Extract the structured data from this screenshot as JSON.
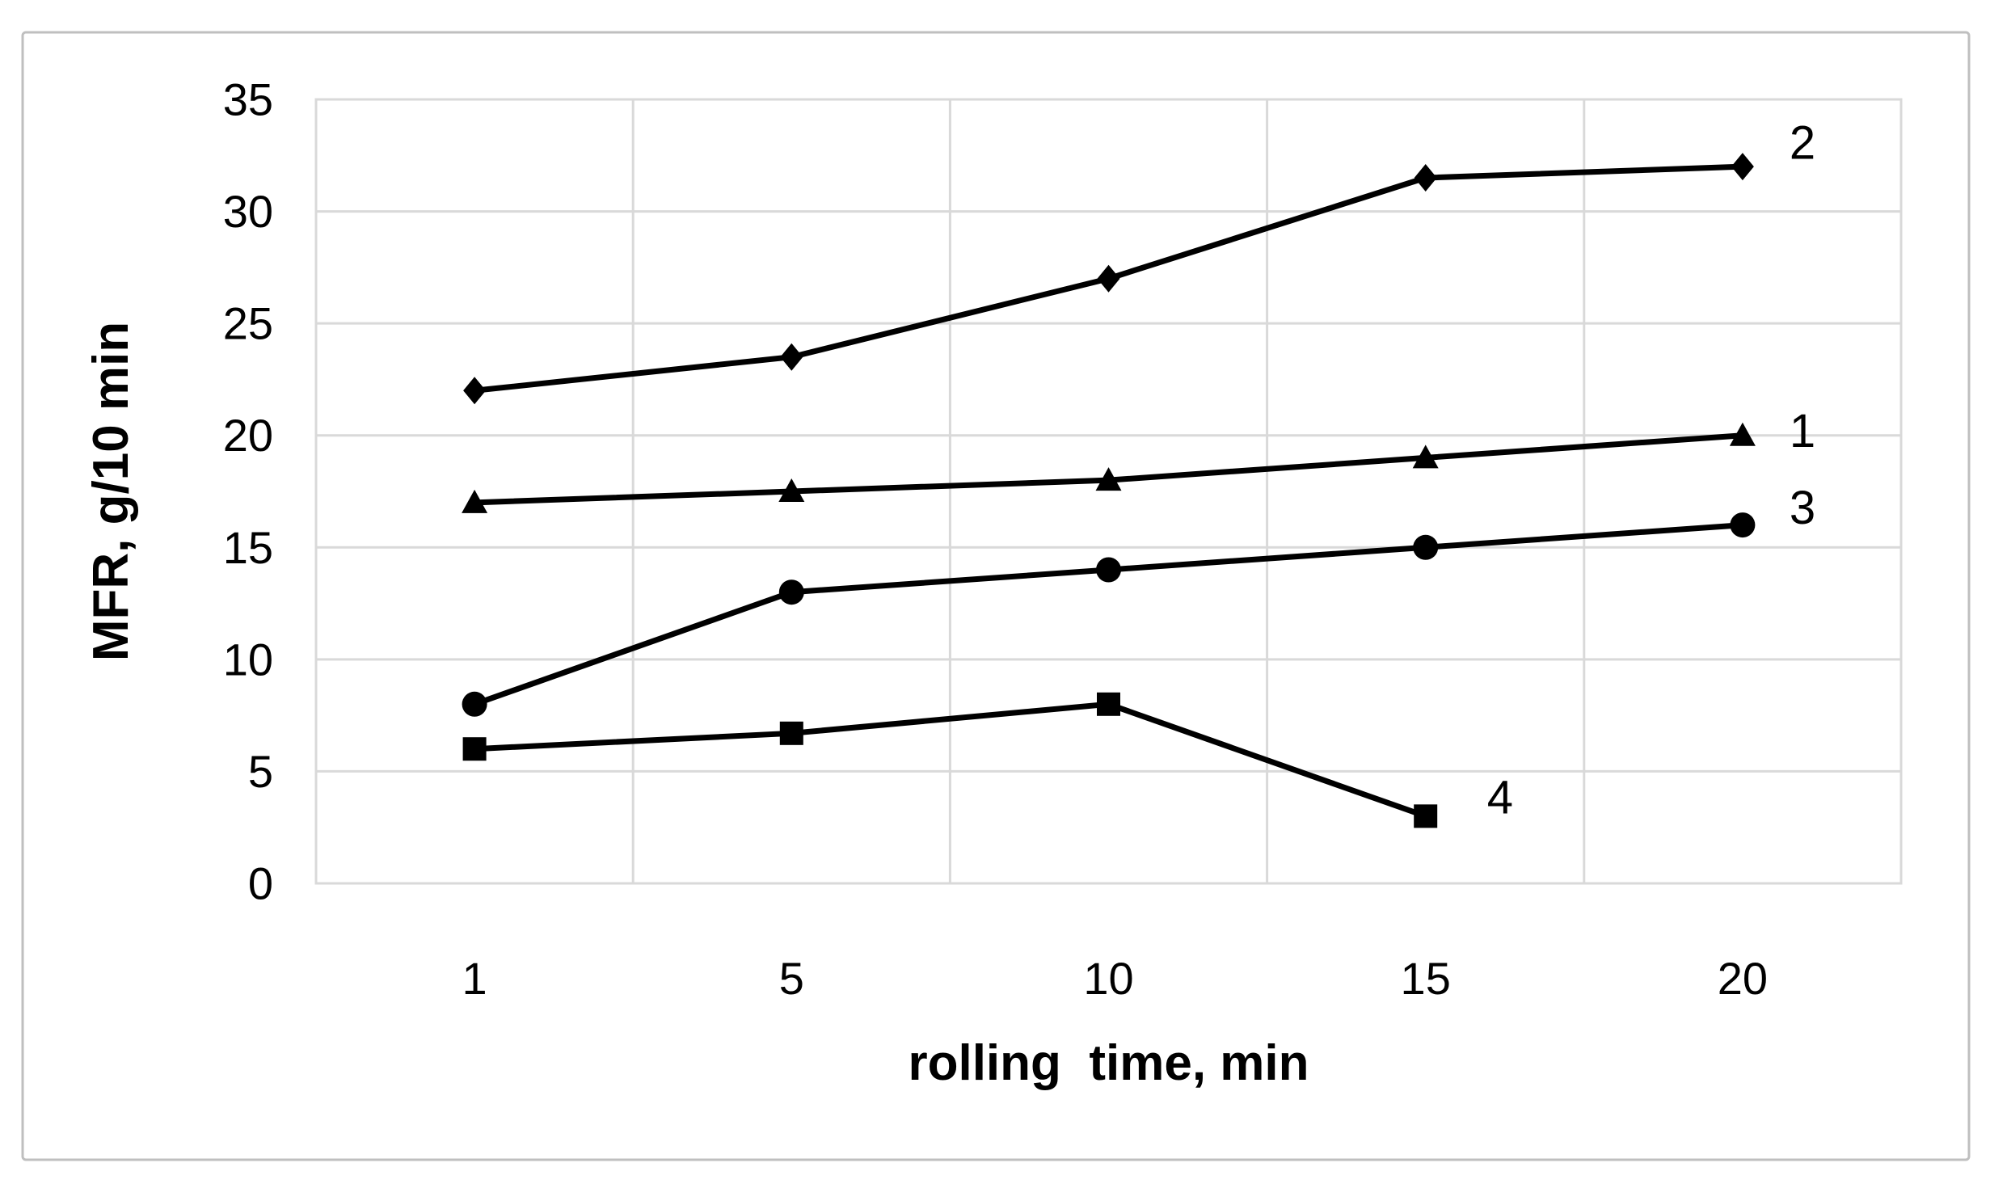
{
  "figure": {
    "background": "#ffffff",
    "border_color": "#bfbfbf"
  },
  "chart_data": {
    "type": "line",
    "title": "",
    "xlabel": "rolling  time, min",
    "ylabel": "MFR, g/10 min",
    "x_categories": [
      "1",
      "5",
      "10",
      "15",
      "20"
    ],
    "y_ticks": [
      "0",
      "5",
      "10",
      "15",
      "20",
      "25",
      "30",
      "35"
    ],
    "ylim": [
      0,
      35
    ],
    "x_axis_type": "categorical",
    "grid": {
      "horizontal": true,
      "vertical": true,
      "color": "#d9d9d9"
    },
    "line_color": "#000000",
    "legend_position": "end-of-line-labels",
    "series": [
      {
        "name": "1",
        "marker": "triangle",
        "end_label": "1",
        "x": [
          1,
          5,
          10,
          15,
          20
        ],
        "values": [
          17,
          17.5,
          18,
          19,
          20
        ]
      },
      {
        "name": "2",
        "marker": "diamond",
        "end_label": "2",
        "x": [
          1,
          5,
          10,
          15,
          20
        ],
        "values": [
          22,
          23.5,
          27,
          31.5,
          32
        ]
      },
      {
        "name": "3",
        "marker": "circle",
        "end_label": "3",
        "x": [
          1,
          5,
          10,
          15,
          20
        ],
        "values": [
          8,
          13,
          14,
          15,
          16
        ]
      },
      {
        "name": "4",
        "marker": "square",
        "end_label": "4",
        "x": [
          1,
          5,
          10,
          15
        ],
        "values": [
          6,
          6.7,
          8,
          3
        ]
      }
    ]
  }
}
